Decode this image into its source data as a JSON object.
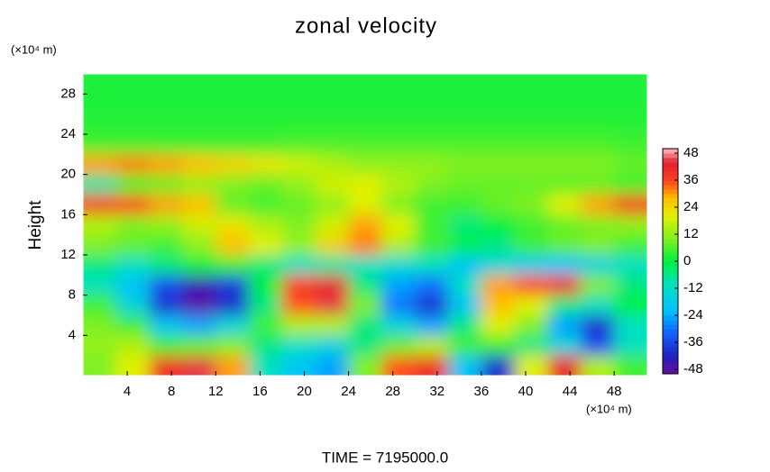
{
  "chart_data": {
    "type": "heatmap",
    "title": "zonal velocity",
    "x_unit_label": "(×10⁴ m)",
    "y_unit_label": "(×10⁴ m)",
    "ylabel": "Height",
    "footer": "TIME  =  7195000.0",
    "xlim": [
      0,
      51
    ],
    "ylim": [
      0,
      30
    ],
    "xticks": [
      4,
      8,
      12,
      16,
      20,
      24,
      28,
      32,
      36,
      40,
      44,
      48
    ],
    "yticks": [
      4,
      8,
      12,
      16,
      20,
      24,
      28
    ],
    "clim": [
      -50,
      50
    ],
    "cticks": [
      48,
      36,
      24,
      12,
      0,
      -12,
      -24,
      -36,
      -48
    ],
    "z": [
      [
        2,
        2,
        2,
        2,
        2,
        2,
        2,
        2,
        2,
        2,
        2,
        2,
        2,
        2,
        2,
        2,
        2
      ],
      [
        2,
        2,
        2,
        2,
        2,
        2,
        2,
        2,
        2,
        2,
        2,
        2,
        2,
        2,
        2,
        2,
        2
      ],
      [
        3,
        3,
        3,
        3,
        3,
        3,
        3,
        3,
        3,
        3,
        3,
        3,
        3,
        3,
        3,
        3,
        3
      ],
      [
        5,
        5,
        5,
        5,
        5,
        5,
        6,
        6,
        6,
        6,
        6,
        6,
        6,
        6,
        6,
        6,
        5
      ],
      [
        30,
        32,
        30,
        28,
        25,
        22,
        18,
        15,
        12,
        12,
        12,
        10,
        10,
        10,
        10,
        10,
        8
      ],
      [
        -8,
        5,
        8,
        12,
        10,
        8,
        12,
        18,
        20,
        15,
        10,
        8,
        8,
        8,
        8,
        8,
        5
      ],
      [
        38,
        36,
        30,
        28,
        8,
        5,
        8,
        12,
        20,
        10,
        5,
        5,
        8,
        10,
        20,
        30,
        38
      ],
      [
        15,
        10,
        12,
        18,
        22,
        15,
        10,
        18,
        30,
        20,
        5,
        -5,
        0,
        5,
        8,
        10,
        12
      ],
      [
        10,
        8,
        5,
        12,
        28,
        20,
        12,
        25,
        32,
        15,
        5,
        0,
        -5,
        5,
        8,
        10,
        5
      ],
      [
        -5,
        -10,
        -5,
        0,
        5,
        -5,
        -10,
        -8,
        -10,
        -12,
        -10,
        -20,
        -15,
        -18,
        -20,
        -15,
        -10
      ],
      [
        -10,
        -20,
        -35,
        -45,
        -38,
        0,
        38,
        42,
        -5,
        -25,
        -30,
        -10,
        30,
        36,
        40,
        10,
        -5
      ],
      [
        5,
        -15,
        -40,
        -48,
        -40,
        -5,
        35,
        45,
        10,
        -30,
        -40,
        -20,
        28,
        20,
        -5,
        -10,
        0
      ],
      [
        10,
        5,
        -20,
        -25,
        -15,
        5,
        15,
        15,
        -5,
        -15,
        -25,
        -5,
        20,
        10,
        -25,
        -40,
        -10
      ],
      [
        12,
        15,
        5,
        8,
        10,
        -5,
        -10,
        -15,
        -5,
        8,
        15,
        5,
        5,
        -5,
        -15,
        -35,
        -10
      ],
      [
        10,
        20,
        40,
        45,
        30,
        -10,
        -20,
        -25,
        10,
        35,
        40,
        -20,
        -40,
        20,
        42,
        15,
        5
      ]
    ]
  }
}
